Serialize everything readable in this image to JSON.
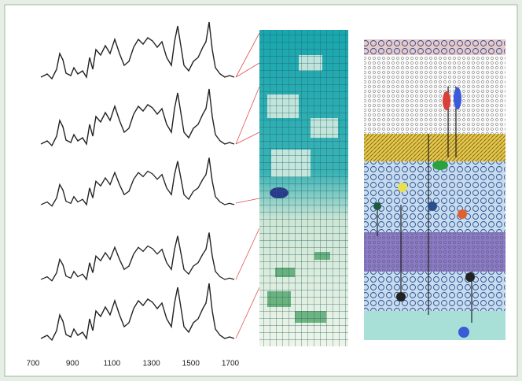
{
  "spectra": {
    "x_ticks": [
      700,
      900,
      1100,
      1300,
      1500,
      1700
    ]
  }
}
